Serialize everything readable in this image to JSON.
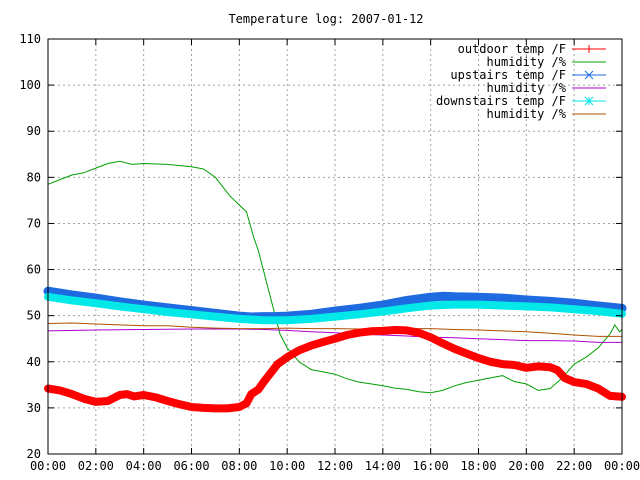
{
  "chart_data": {
    "type": "line",
    "title": "Temperature log: 2007-01-12",
    "xlabel": "",
    "ylabel": "",
    "xlim": [
      0,
      24
    ],
    "ylim": [
      20,
      110
    ],
    "grid": true,
    "legend_position": "top-right",
    "x_ticks": [
      {
        "value": 0,
        "label": "00:00"
      },
      {
        "value": 2,
        "label": "02:00"
      },
      {
        "value": 4,
        "label": "04:00"
      },
      {
        "value": 6,
        "label": "06:00"
      },
      {
        "value": 8,
        "label": "08:00"
      },
      {
        "value": 10,
        "label": "10:00"
      },
      {
        "value": 12,
        "label": "12:00"
      },
      {
        "value": 14,
        "label": "14:00"
      },
      {
        "value": 16,
        "label": "16:00"
      },
      {
        "value": 18,
        "label": "18:00"
      },
      {
        "value": 20,
        "label": "20:00"
      },
      {
        "value": 22,
        "label": "22:00"
      },
      {
        "value": 24,
        "label": "00:00"
      }
    ],
    "y_ticks": [
      {
        "value": 20,
        "label": "20"
      },
      {
        "value": 30,
        "label": "30"
      },
      {
        "value": 40,
        "label": "40"
      },
      {
        "value": 50,
        "label": "50"
      },
      {
        "value": 60,
        "label": "60"
      },
      {
        "value": 70,
        "label": "70"
      },
      {
        "value": 80,
        "label": "80"
      },
      {
        "value": 90,
        "label": "90"
      },
      {
        "value": 100,
        "label": "100"
      },
      {
        "value": 110,
        "label": "110"
      }
    ],
    "series": [
      {
        "name": "outdoor temp /F",
        "color": "#ff0000",
        "marker": "plus",
        "points": [
          [
            0,
            34.2
          ],
          [
            0.5,
            33.8
          ],
          [
            1,
            33
          ],
          [
            1.5,
            32
          ],
          [
            2,
            31.3
          ],
          [
            2.5,
            31.5
          ],
          [
            3,
            32.8
          ],
          [
            3.3,
            33
          ],
          [
            3.6,
            32.5
          ],
          [
            4,
            32.8
          ],
          [
            4.5,
            32.3
          ],
          [
            5,
            31.5
          ],
          [
            5.5,
            30.8
          ],
          [
            6,
            30.2
          ],
          [
            6.5,
            30
          ],
          [
            7,
            29.9
          ],
          [
            7.5,
            29.9
          ],
          [
            8,
            30.2
          ],
          [
            8.3,
            31
          ],
          [
            8.5,
            33
          ],
          [
            8.8,
            34
          ],
          [
            9,
            35.5
          ],
          [
            9.3,
            37.5
          ],
          [
            9.6,
            39.5
          ],
          [
            10,
            41
          ],
          [
            10.5,
            42.5
          ],
          [
            11,
            43.5
          ],
          [
            11.5,
            44.3
          ],
          [
            12,
            45
          ],
          [
            12.5,
            45.8
          ],
          [
            13,
            46.3
          ],
          [
            13.5,
            46.6
          ],
          [
            14,
            46.7
          ],
          [
            14.5,
            46.9
          ],
          [
            15,
            46.8
          ],
          [
            15.5,
            46.3
          ],
          [
            16,
            45.3
          ],
          [
            16.5,
            44
          ],
          [
            17,
            42.8
          ],
          [
            17.5,
            41.8
          ],
          [
            18,
            40.8
          ],
          [
            18.5,
            40
          ],
          [
            19,
            39.5
          ],
          [
            19.5,
            39.3
          ],
          [
            20,
            38.7
          ],
          [
            20.5,
            39
          ],
          [
            21,
            38.8
          ],
          [
            21.3,
            38.2
          ],
          [
            21.6,
            36.5
          ],
          [
            22,
            35.6
          ],
          [
            22.5,
            35.2
          ],
          [
            23,
            34.2
          ],
          [
            23.5,
            32.6
          ],
          [
            24,
            32.4
          ]
        ]
      },
      {
        "name": "humidity /%",
        "color": "#00a000",
        "marker": "none",
        "points": [
          [
            0,
            78.5
          ],
          [
            0.5,
            79.5
          ],
          [
            1,
            80.5
          ],
          [
            1.5,
            81
          ],
          [
            2,
            82
          ],
          [
            2.5,
            83
          ],
          [
            3,
            83.5
          ],
          [
            3.5,
            82.8
          ],
          [
            4,
            83
          ],
          [
            5,
            82.8
          ],
          [
            6,
            82.3
          ],
          [
            6.5,
            81.8
          ],
          [
            7,
            80
          ],
          [
            7.3,
            78
          ],
          [
            7.6,
            76
          ],
          [
            8,
            74
          ],
          [
            8.3,
            72.5
          ],
          [
            8.6,
            67
          ],
          [
            8.8,
            64
          ],
          [
            9.1,
            58
          ],
          [
            9.4,
            52
          ],
          [
            9.7,
            46
          ],
          [
            10,
            43
          ],
          [
            10.5,
            40
          ],
          [
            11,
            38.3
          ],
          [
            11.5,
            37.8
          ],
          [
            12,
            37.3
          ],
          [
            12.5,
            36.3
          ],
          [
            13,
            35.6
          ],
          [
            13.5,
            35.2
          ],
          [
            14,
            34.8
          ],
          [
            14.5,
            34.3
          ],
          [
            15,
            34
          ],
          [
            15.5,
            33.5
          ],
          [
            16,
            33.3
          ],
          [
            16.5,
            33.8
          ],
          [
            17,
            34.8
          ],
          [
            17.5,
            35.5
          ],
          [
            18,
            36
          ],
          [
            18.5,
            36.5
          ],
          [
            19,
            37
          ],
          [
            19.5,
            35.7
          ],
          [
            20,
            35.2
          ],
          [
            20.5,
            33.8
          ],
          [
            21,
            34.2
          ],
          [
            21.5,
            36.5
          ],
          [
            22,
            39.5
          ],
          [
            22.5,
            41
          ],
          [
            23,
            43
          ],
          [
            23.5,
            46
          ],
          [
            23.7,
            48
          ],
          [
            23.9,
            46.5
          ],
          [
            24,
            47
          ]
        ]
      },
      {
        "name": "upstairs temp /F",
        "color": "#1e6ae0",
        "marker": "cross",
        "points": [
          [
            0,
            55.3
          ],
          [
            1,
            54.5
          ],
          [
            2,
            53.8
          ],
          [
            3,
            53
          ],
          [
            4,
            52.3
          ],
          [
            5,
            51.7
          ],
          [
            6,
            51.1
          ],
          [
            7,
            50.5
          ],
          [
            8,
            49.9
          ],
          [
            8.5,
            49.7
          ],
          [
            9,
            49.8
          ],
          [
            9.5,
            49.8
          ],
          [
            10,
            49.9
          ],
          [
            11,
            50.3
          ],
          [
            12,
            51
          ],
          [
            13,
            51.6
          ],
          [
            14,
            52.3
          ],
          [
            15,
            53.3
          ],
          [
            16,
            54
          ],
          [
            16.5,
            54.2
          ],
          [
            17,
            54.1
          ],
          [
            18,
            54
          ],
          [
            19,
            53.8
          ],
          [
            20,
            53.4
          ],
          [
            21,
            53.1
          ],
          [
            22,
            52.7
          ],
          [
            23,
            52.1
          ],
          [
            24,
            51.6
          ]
        ]
      },
      {
        "name": "humidity /%",
        "color": "#b000d0",
        "marker": "none",
        "points": [
          [
            0,
            46.7
          ],
          [
            2,
            46.9
          ],
          [
            4,
            47
          ],
          [
            6,
            47.1
          ],
          [
            8,
            47.1
          ],
          [
            9,
            47
          ],
          [
            10,
            46.8
          ],
          [
            11,
            46.5
          ],
          [
            12,
            46.3
          ],
          [
            13,
            46
          ],
          [
            14,
            45.8
          ],
          [
            15,
            45.6
          ],
          [
            16,
            45.3
          ],
          [
            17,
            45.2
          ],
          [
            18,
            45
          ],
          [
            19,
            44.8
          ],
          [
            20,
            44.6
          ],
          [
            21,
            44.6
          ],
          [
            22,
            44.5
          ],
          [
            23,
            44.2
          ],
          [
            24,
            44.2
          ]
        ]
      },
      {
        "name": "downstairs temp /F",
        "color": "#00e8e8",
        "marker": "star",
        "points": [
          [
            0,
            54.1
          ],
          [
            1,
            53.3
          ],
          [
            2,
            52.7
          ],
          [
            3,
            52
          ],
          [
            4,
            51.4
          ],
          [
            5,
            50.8
          ],
          [
            6,
            50.3
          ],
          [
            7,
            49.8
          ],
          [
            8,
            49.3
          ],
          [
            9,
            49
          ],
          [
            10,
            49
          ],
          [
            11,
            49.3
          ],
          [
            12,
            49.8
          ],
          [
            13,
            50.3
          ],
          [
            14,
            50.9
          ],
          [
            15,
            51.6
          ],
          [
            16,
            52.2
          ],
          [
            17,
            52.4
          ],
          [
            18,
            52.4
          ],
          [
            19,
            52.2
          ],
          [
            20,
            52
          ],
          [
            21,
            51.8
          ],
          [
            22,
            51.4
          ],
          [
            23,
            51
          ],
          [
            24,
            50.4
          ]
        ]
      },
      {
        "name": "humidity /%",
        "color": "#b05000",
        "marker": "none",
        "points": [
          [
            0,
            48.3
          ],
          [
            1,
            48.4
          ],
          [
            2,
            48.2
          ],
          [
            3,
            48
          ],
          [
            4,
            47.8
          ],
          [
            5,
            47.8
          ],
          [
            6,
            47.5
          ],
          [
            7,
            47.3
          ],
          [
            8,
            47.2
          ],
          [
            9,
            47.2
          ],
          [
            10,
            47.3
          ],
          [
            11,
            47.2
          ],
          [
            12,
            47.2
          ],
          [
            13,
            47.1
          ],
          [
            14,
            47.2
          ],
          [
            15,
            47.2
          ],
          [
            16,
            47.2
          ],
          [
            17,
            47
          ],
          [
            18,
            46.9
          ],
          [
            19,
            46.7
          ],
          [
            20,
            46.5
          ],
          [
            21,
            46.2
          ],
          [
            22,
            45.8
          ],
          [
            23,
            45.5
          ],
          [
            24,
            45.5
          ]
        ]
      }
    ]
  }
}
